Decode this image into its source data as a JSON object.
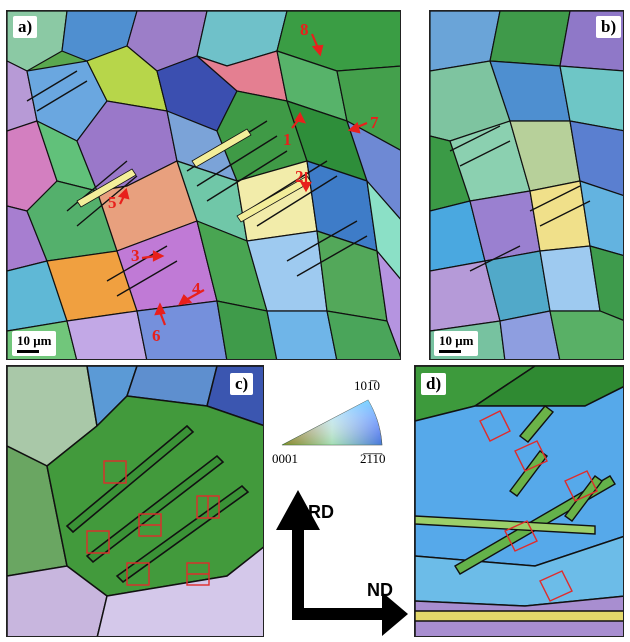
{
  "panels": {
    "a": {
      "label": "a)",
      "scale": "10 μm"
    },
    "b": {
      "label": "b)",
      "scale": "10 μm"
    },
    "c": {
      "label": "c)"
    },
    "d": {
      "label": "d)"
    }
  },
  "grain_markers": [
    "1",
    "2",
    "3",
    "4",
    "5",
    "6",
    "7",
    "8"
  ],
  "color_key": {
    "top": "10\u00051̅0",
    "left": "0001",
    "right": "2̅1̅1̅0"
  },
  "axes": {
    "vertical": "RD",
    "horizontal": "ND"
  },
  "colors": {
    "marker_red": "#e8201c",
    "twin_boundary": "#0a0a0a"
  }
}
